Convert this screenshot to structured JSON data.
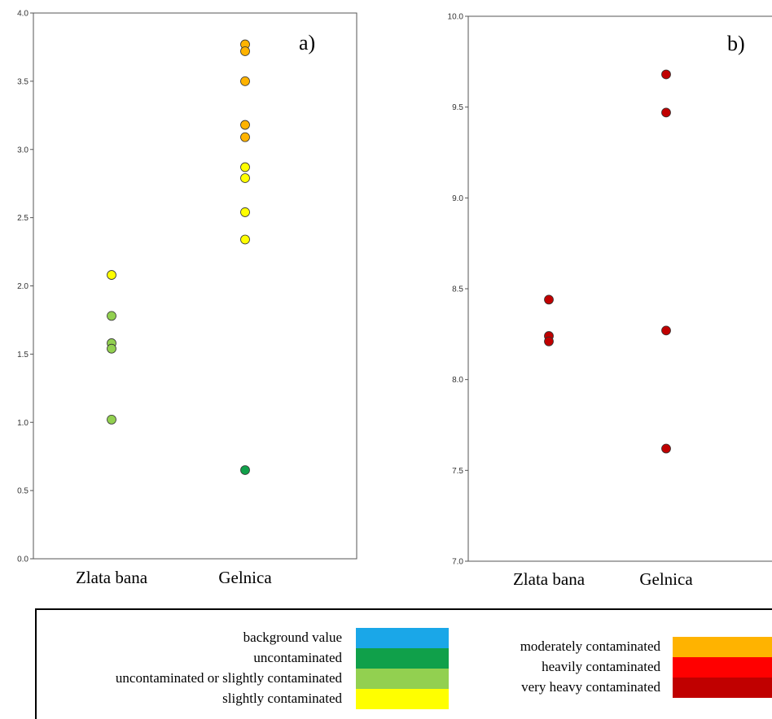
{
  "chart_data": [
    {
      "type": "scatter",
      "panel_label": "a)",
      "categories": [
        "Zlata bana",
        "Gelnica"
      ],
      "ylim": [
        0.0,
        4.0
      ],
      "yticks": [
        "0.0",
        "0.5",
        "1.0",
        "1.5",
        "2.0",
        "2.5",
        "3.0",
        "3.5",
        "4.0"
      ],
      "grid": false,
      "points": [
        {
          "category": "Zlata bana",
          "y": 2.08,
          "class": "slightly contaminated"
        },
        {
          "category": "Zlata bana",
          "y": 1.78,
          "class": "uncontaminated or slightly contaminated"
        },
        {
          "category": "Zlata bana",
          "y": 1.58,
          "class": "uncontaminated or slightly contaminated"
        },
        {
          "category": "Zlata bana",
          "y": 1.54,
          "class": "uncontaminated or slightly contaminated"
        },
        {
          "category": "Zlata bana",
          "y": 1.02,
          "class": "uncontaminated or slightly contaminated"
        },
        {
          "category": "Gelnica",
          "y": 3.77,
          "class": "moderately contaminated"
        },
        {
          "category": "Gelnica",
          "y": 3.72,
          "class": "moderately contaminated"
        },
        {
          "category": "Gelnica",
          "y": 3.5,
          "class": "moderately contaminated"
        },
        {
          "category": "Gelnica",
          "y": 3.18,
          "class": "moderately contaminated"
        },
        {
          "category": "Gelnica",
          "y": 3.09,
          "class": "moderately contaminated"
        },
        {
          "category": "Gelnica",
          "y": 2.87,
          "class": "slightly contaminated"
        },
        {
          "category": "Gelnica",
          "y": 2.79,
          "class": "slightly contaminated"
        },
        {
          "category": "Gelnica",
          "y": 2.54,
          "class": "slightly contaminated"
        },
        {
          "category": "Gelnica",
          "y": 2.34,
          "class": "slightly contaminated"
        },
        {
          "category": "Gelnica",
          "y": 0.65,
          "class": "uncontaminated"
        }
      ]
    },
    {
      "type": "scatter",
      "panel_label": "b)",
      "categories": [
        "Zlata bana",
        "Gelnica"
      ],
      "ylim": [
        7.0,
        10.0
      ],
      "yticks": [
        "7.0",
        "7.5",
        "8.0",
        "8.5",
        "9.0",
        "9.5",
        "10.0"
      ],
      "grid": false,
      "points": [
        {
          "category": "Zlata bana",
          "y": 8.44,
          "class": "very heavy contaminated"
        },
        {
          "category": "Zlata bana",
          "y": 8.24,
          "class": "very heavy contaminated"
        },
        {
          "category": "Zlata bana",
          "y": 8.21,
          "class": "very heavy contaminated"
        },
        {
          "category": "Gelnica",
          "y": 9.68,
          "class": "very heavy contaminated"
        },
        {
          "category": "Gelnica",
          "y": 9.47,
          "class": "very heavy contaminated"
        },
        {
          "category": "Gelnica",
          "y": 8.27,
          "class": "very heavy contaminated"
        },
        {
          "category": "Gelnica",
          "y": 7.62,
          "class": "very heavy contaminated"
        }
      ]
    }
  ],
  "legend": {
    "left": [
      {
        "label": "background value",
        "color": "#1AA7E8"
      },
      {
        "label": "uncontaminated",
        "color": "#10A04A"
      },
      {
        "label": "uncontaminated or slightly contaminated",
        "color": "#92D050"
      },
      {
        "label": "slightly contaminated",
        "color": "#FFFF00"
      }
    ],
    "right": [
      {
        "label": "moderately contaminated",
        "color": "#FFB300"
      },
      {
        "label": "heavily contaminated",
        "color": "#FF0000"
      },
      {
        "label": "very heavy contaminated",
        "color": "#C00000"
      }
    ]
  }
}
